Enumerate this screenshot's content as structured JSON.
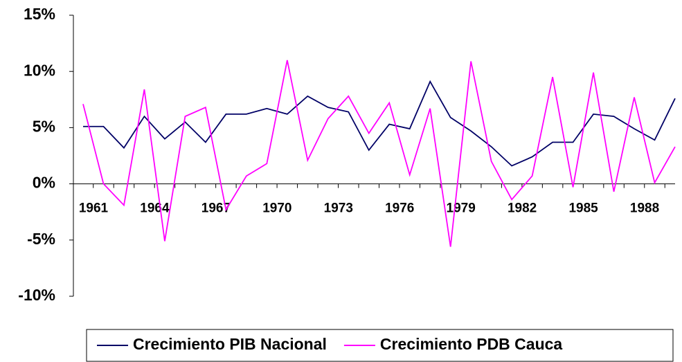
{
  "chart_data": {
    "type": "line",
    "categories": [
      "1961",
      null,
      null,
      "1964",
      null,
      null,
      "1967",
      null,
      null,
      "1970",
      null,
      null,
      "1973",
      null,
      null,
      "1976",
      null,
      null,
      "1979",
      null,
      null,
      "1982",
      null,
      null,
      "1985",
      null,
      null,
      "1988",
      null,
      null
    ],
    "series": [
      {
        "name": "Crecimiento PIB Nacional",
        "color": "#000066",
        "values": [
          5.1,
          5.1,
          3.2,
          6.0,
          4.0,
          5.5,
          3.7,
          6.2,
          6.2,
          6.7,
          6.2,
          7.8,
          6.8,
          6.4,
          3.0,
          5.3,
          4.9,
          9.1,
          5.9,
          4.7,
          3.3,
          1.6,
          2.4,
          3.7,
          3.7,
          6.2,
          6.0,
          4.9,
          3.9,
          7.6
        ]
      },
      {
        "name": "Crecimiento PDB Cauca",
        "color": "#ff00ff",
        "values": [
          7.1,
          0.0,
          -1.9,
          8.4,
          -5.1,
          6.0,
          6.8,
          -2.3,
          0.7,
          1.8,
          11.0,
          2.1,
          5.8,
          7.8,
          4.5,
          7.2,
          0.8,
          6.7,
          -5.6,
          10.9,
          2.0,
          -1.4,
          0.7,
          9.5,
          -0.3,
          9.9,
          -0.7,
          7.7,
          0.1,
          3.3
        ]
      }
    ],
    "ylim": [
      -10,
      15
    ],
    "yticks": [
      {
        "value": -10,
        "label": "-10%"
      },
      {
        "value": -5,
        "label": "-5%"
      },
      {
        "value": 0,
        "label": "0%"
      },
      {
        "value": 5,
        "label": "5%"
      },
      {
        "value": 10,
        "label": "10%"
      },
      {
        "value": 15,
        "label": "15%"
      }
    ],
    "legend": "bottom"
  }
}
